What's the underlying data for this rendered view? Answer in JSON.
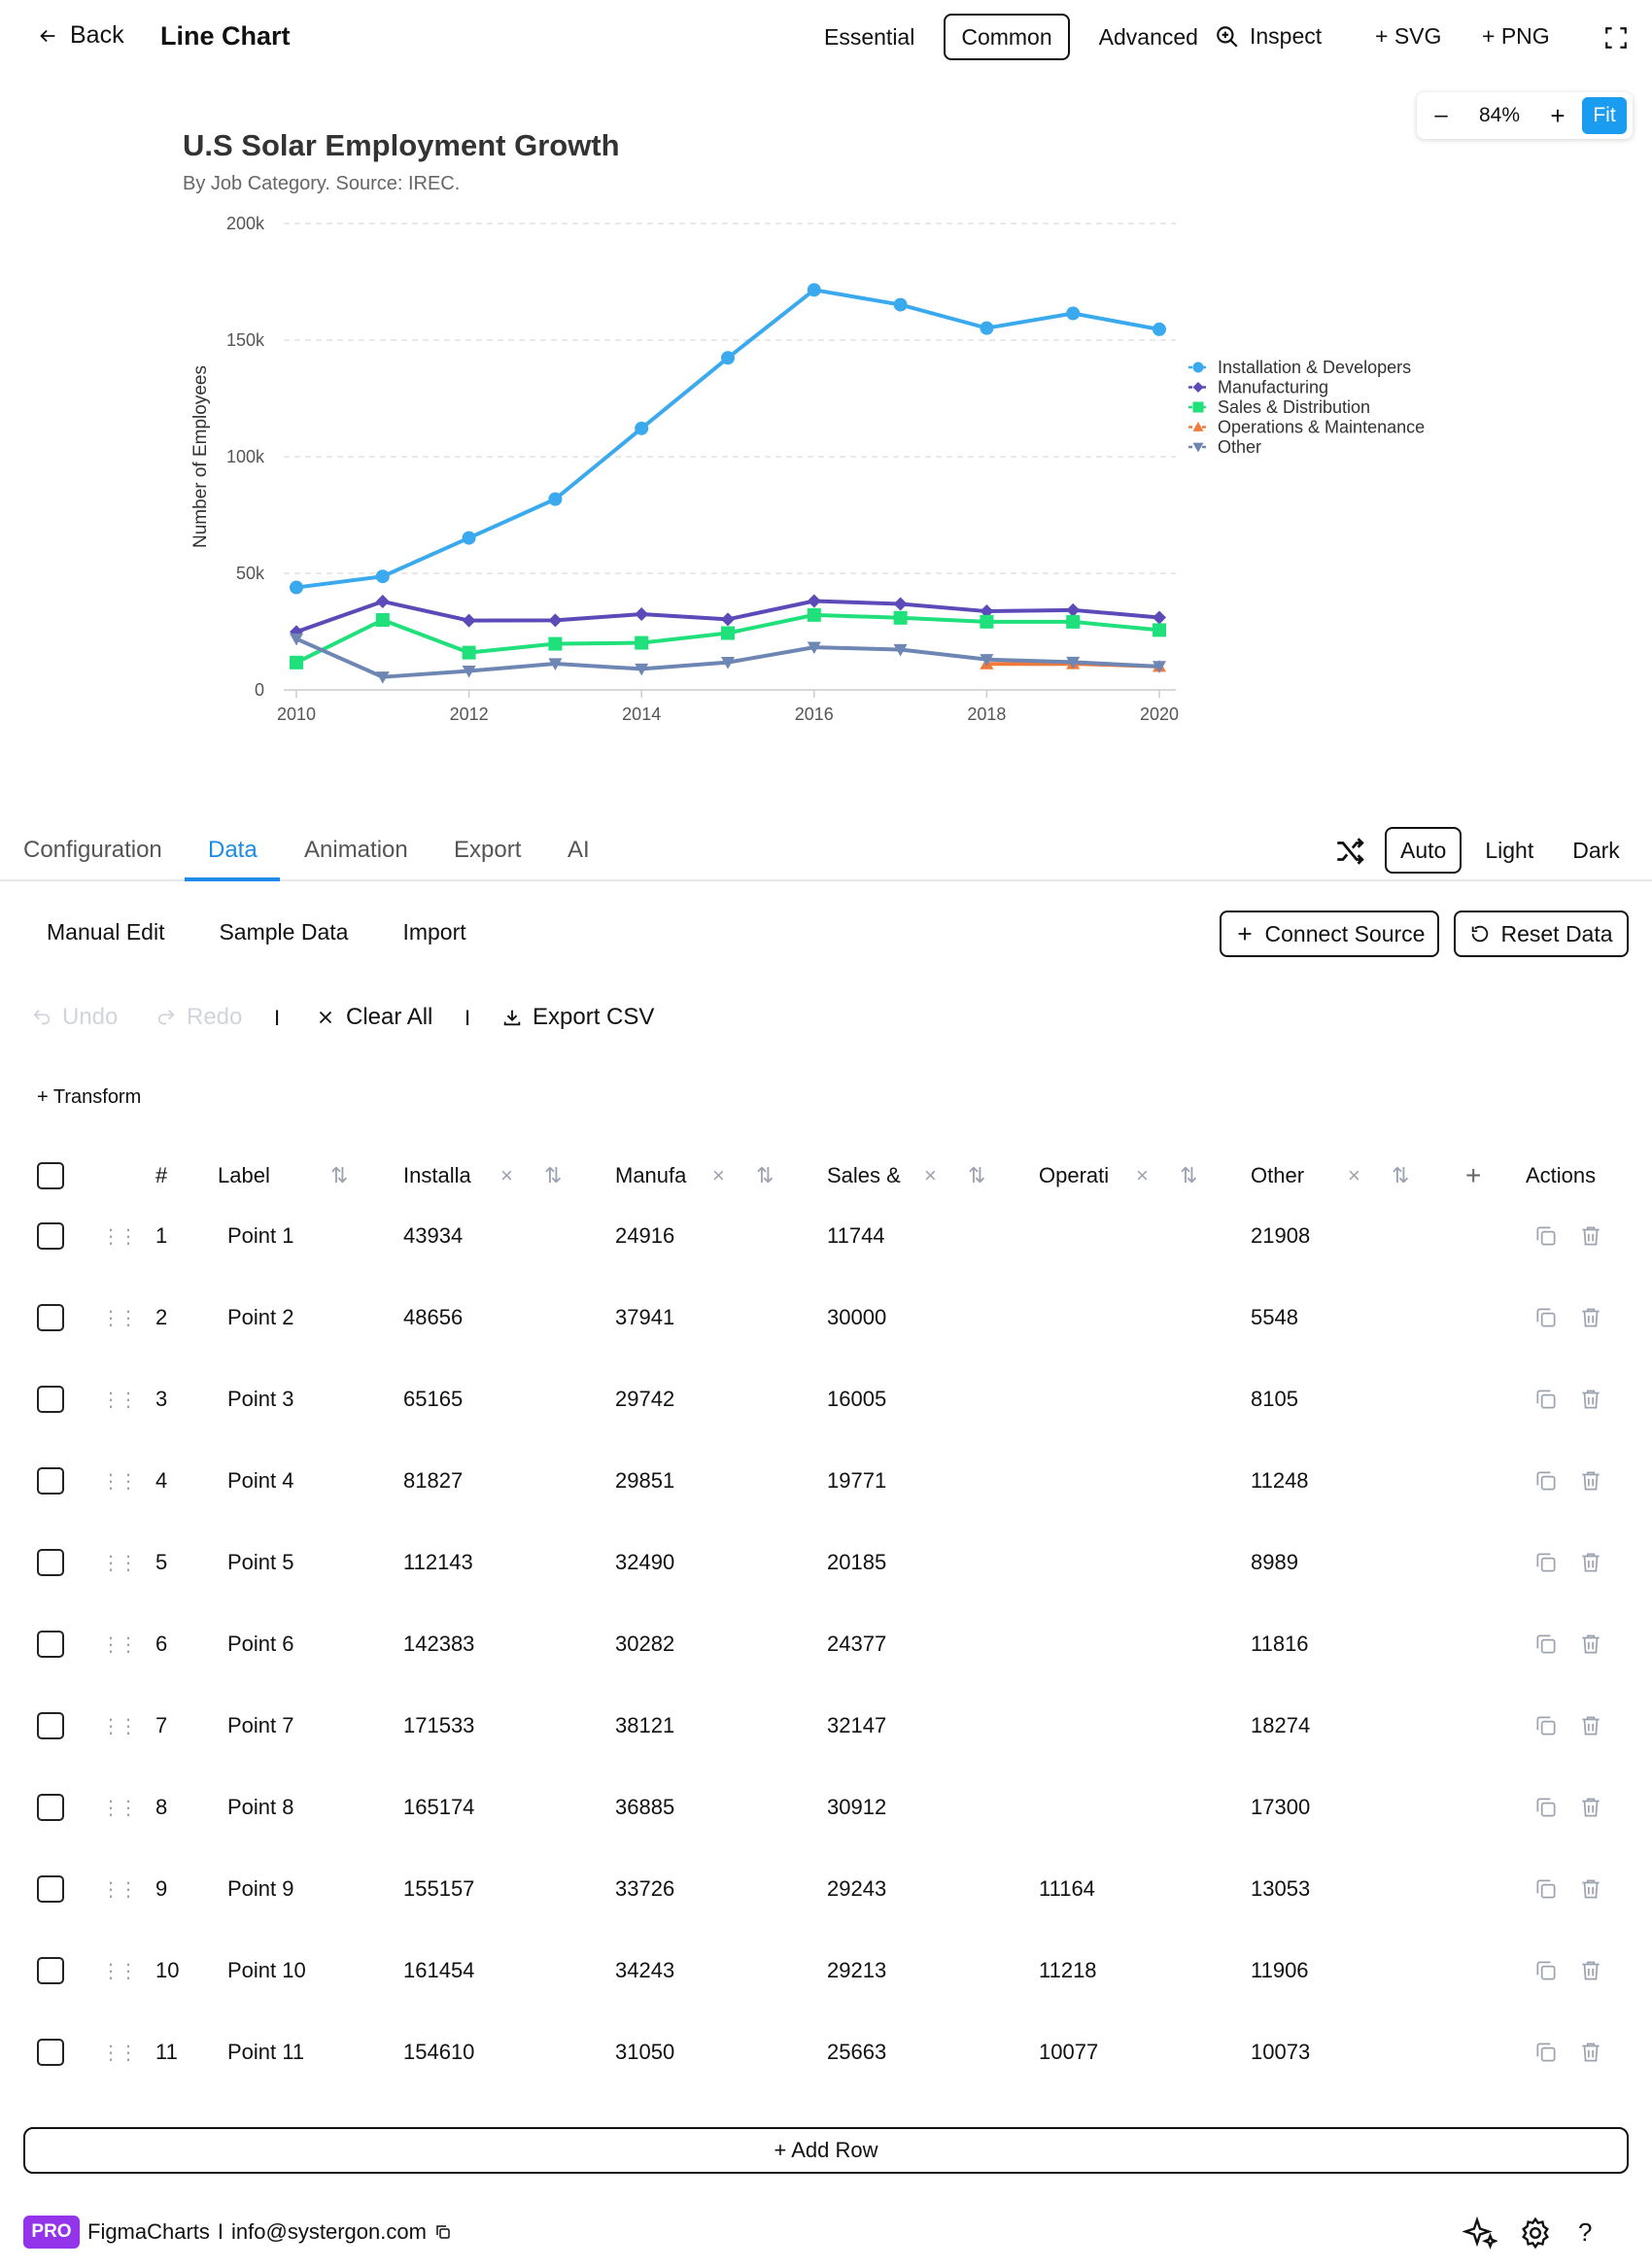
{
  "header": {
    "back_label": "Back",
    "title": "Line Chart",
    "modes": [
      "Essential",
      "Common",
      "Advanced"
    ],
    "active_mode": "Common",
    "inspect_label": "Inspect",
    "svg_label": "+ SVG",
    "png_label": "+ PNG"
  },
  "zoom": {
    "minus": "–",
    "value": "84%",
    "plus": "+",
    "fit": "Fit"
  },
  "chart_data": {
    "type": "line",
    "title": "U.S Solar Employment Growth",
    "subtitle": "By Job Category. Source: IREC.",
    "xlabel": "",
    "ylabel": "Number of Employees",
    "x": [
      2010,
      2011,
      2012,
      2013,
      2014,
      2015,
      2016,
      2017,
      2018,
      2019,
      2020
    ],
    "x_ticks": [
      "2010",
      "2012",
      "2014",
      "2016",
      "2018",
      "2020"
    ],
    "y_ticks": [
      "0",
      "50k",
      "100k",
      "150k",
      "200k"
    ],
    "ylim": [
      0,
      200000
    ],
    "grid": true,
    "legend_position": "right",
    "series": [
      {
        "name": "Installation & Developers",
        "color": "#3ba9ee",
        "marker": "circle",
        "values": [
          43934,
          48656,
          65165,
          81827,
          112143,
          142383,
          171533,
          165174,
          155157,
          161454,
          154610
        ]
      },
      {
        "name": "Manufacturing",
        "color": "#5b4ab8",
        "marker": "diamond",
        "values": [
          24916,
          37941,
          29742,
          29851,
          32490,
          30282,
          38121,
          36885,
          33726,
          34243,
          31050
        ]
      },
      {
        "name": "Sales & Distribution",
        "color": "#1fe07a",
        "marker": "square",
        "values": [
          11744,
          30000,
          16005,
          19771,
          20185,
          24377,
          32147,
          30912,
          29243,
          29213,
          25663
        ]
      },
      {
        "name": "Operations & Maintenance",
        "color": "#f07a3c",
        "marker": "triangle",
        "values": [
          null,
          null,
          null,
          null,
          null,
          null,
          null,
          null,
          11164,
          11218,
          10077
        ]
      },
      {
        "name": "Other",
        "color": "#6e86b4",
        "marker": "triangle-down",
        "values": [
          21908,
          5548,
          8105,
          11248,
          8989,
          11816,
          18274,
          17300,
          13053,
          11906,
          10073
        ]
      }
    ]
  },
  "tabs": {
    "items": [
      "Configuration",
      "Data",
      "Animation",
      "Export",
      "AI"
    ],
    "active": "Data",
    "themes": [
      "Auto",
      "Light",
      "Dark"
    ],
    "active_theme": "Auto"
  },
  "data_panel": {
    "subtabs": [
      "Manual Edit",
      "Sample Data",
      "Import"
    ],
    "connect_source": "Connect Source",
    "reset_data": "Reset Data",
    "undo": "Undo",
    "redo": "Redo",
    "separator": "I",
    "clear_all": "Clear All",
    "export_csv": "Export CSV",
    "transform": "+ Transform",
    "add_row": "+ Add Row"
  },
  "table": {
    "headers": {
      "index": "#",
      "label": "Label",
      "actions": "Actions",
      "add_column": "+",
      "remove": "×",
      "sort": "⇅"
    },
    "columns": [
      "Installa",
      "Manufa",
      "Sales &",
      "Operati",
      "Other"
    ],
    "rows": [
      {
        "index": "1",
        "label": "Point 1",
        "values": [
          "43934",
          "24916",
          "11744",
          "",
          "21908"
        ]
      },
      {
        "index": "2",
        "label": "Point 2",
        "values": [
          "48656",
          "37941",
          "30000",
          "",
          "5548"
        ]
      },
      {
        "index": "3",
        "label": "Point 3",
        "values": [
          "65165",
          "29742",
          "16005",
          "",
          "8105"
        ]
      },
      {
        "index": "4",
        "label": "Point 4",
        "values": [
          "81827",
          "29851",
          "19771",
          "",
          "11248"
        ]
      },
      {
        "index": "5",
        "label": "Point 5",
        "values": [
          "112143",
          "32490",
          "20185",
          "",
          "8989"
        ]
      },
      {
        "index": "6",
        "label": "Point 6",
        "values": [
          "142383",
          "30282",
          "24377",
          "",
          "11816"
        ]
      },
      {
        "index": "7",
        "label": "Point 7",
        "values": [
          "171533",
          "38121",
          "32147",
          "",
          "18274"
        ]
      },
      {
        "index": "8",
        "label": "Point 8",
        "values": [
          "165174",
          "36885",
          "30912",
          "",
          "17300"
        ]
      },
      {
        "index": "9",
        "label": "Point 9",
        "values": [
          "155157",
          "33726",
          "29243",
          "11164",
          "13053"
        ]
      },
      {
        "index": "10",
        "label": "Point 10",
        "values": [
          "161454",
          "34243",
          "29213",
          "11218",
          "11906"
        ]
      },
      {
        "index": "11",
        "label": "Point 11",
        "values": [
          "154610",
          "31050",
          "25663",
          "10077",
          "10073"
        ]
      }
    ]
  },
  "footer": {
    "badge": "PRO",
    "brand": "FigmaCharts",
    "separator": "I",
    "email": "info@systergon.com",
    "help": "?"
  }
}
